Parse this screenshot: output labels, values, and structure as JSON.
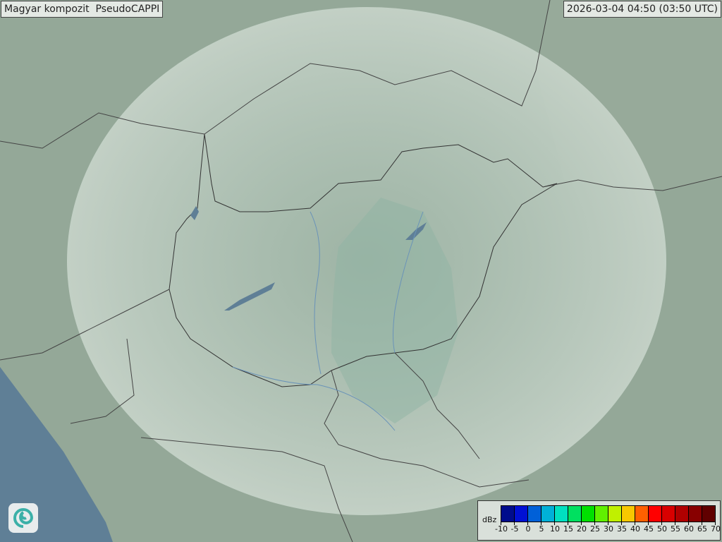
{
  "title": "Magyar kompozit  PseudoCAPPI",
  "timestamp": "2026-03-04 04:50 (03:50 UTC)",
  "legend": {
    "unit": "dBz",
    "ticks": [
      "-10",
      "-5",
      "0",
      "5",
      "10",
      "15",
      "20",
      "25",
      "30",
      "35",
      "40",
      "45",
      "50",
      "55",
      "60",
      "65",
      "70"
    ],
    "colors": [
      "#000c8c",
      "#0010d4",
      "#0060d8",
      "#00b0d8",
      "#00e0c0",
      "#00e060",
      "#00e000",
      "#60f000",
      "#c0f000",
      "#f8c800",
      "#ff6000",
      "#ff0000",
      "#d80000",
      "#b00000",
      "#880000",
      "#600000"
    ]
  },
  "logo": {
    "icon": "swirl-logo-icon"
  },
  "map": {
    "land_color": "#93a99b",
    "coverage_color": "#c9d6cc",
    "water_color": "#5f7f96",
    "lakes": [
      "Balaton",
      "Tisza-tó",
      "Fertő"
    ]
  }
}
